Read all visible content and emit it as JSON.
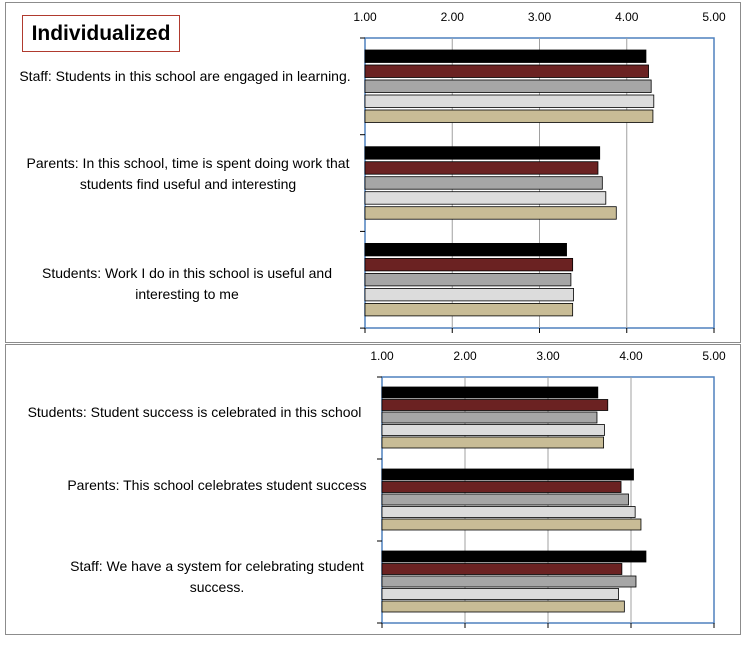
{
  "title": "Individualized",
  "colors": {
    "series": [
      "#000000",
      "#6b2222",
      "#a6a6a6",
      "#dcdcdc",
      "#c8bc96"
    ],
    "plot_border": "#4f81bd",
    "grid": "#a0a0a0"
  },
  "chart_data": [
    {
      "type": "bar",
      "orientation": "horizontal",
      "xlim": [
        1,
        5
      ],
      "ticks": [
        "1.00",
        "2.00",
        "3.00",
        "4.00",
        "5.00"
      ],
      "tick_position": "top",
      "grid": true,
      "categories": [
        "Staff: Students in this school are engaged in learning.",
        "Parents: In this school, time is spent doing work that students find useful and interesting",
        "Students: Work I do in this school is useful and interesting to me"
      ],
      "series": [
        {
          "values": [
            4.22,
            3.69,
            3.31
          ]
        },
        {
          "values": [
            4.25,
            3.67,
            3.38
          ]
        },
        {
          "values": [
            4.28,
            3.72,
            3.36
          ]
        },
        {
          "values": [
            4.31,
            3.76,
            3.39
          ]
        },
        {
          "values": [
            4.3,
            3.88,
            3.38
          ]
        }
      ]
    },
    {
      "type": "bar",
      "orientation": "horizontal",
      "xlim": [
        1,
        5
      ],
      "ticks": [
        "1.00",
        "2.00",
        "3.00",
        "4.00",
        "5.00"
      ],
      "tick_position": "top",
      "grid": true,
      "categories": [
        "Students: Student success is celebrated in this school",
        "Parents: This school celebrates student success",
        "Staff: We have a system for celebrating student success."
      ],
      "series": [
        {
          "values": [
            3.6,
            4.03,
            4.18
          ]
        },
        {
          "values": [
            3.72,
            3.88,
            3.89
          ]
        },
        {
          "values": [
            3.59,
            3.97,
            4.06
          ]
        },
        {
          "values": [
            3.68,
            4.05,
            3.85
          ]
        },
        {
          "values": [
            3.67,
            4.12,
            3.92
          ]
        }
      ]
    }
  ]
}
